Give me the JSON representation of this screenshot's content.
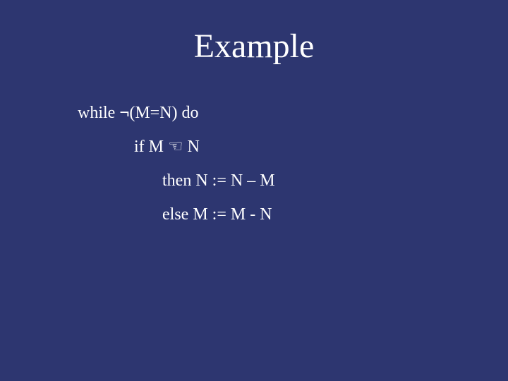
{
  "slide": {
    "background_color": "#2d3670",
    "text_color": "#ffffff",
    "title": {
      "text": "Example",
      "fontsize": 48,
      "font_family": "Times New Roman"
    },
    "body": {
      "fontsize": 24,
      "font_family": "Times New Roman",
      "lines": [
        {
          "indent": 0,
          "prefix": "while ",
          "sym": "¬",
          "suffix": "(M=N) do"
        },
        {
          "indent": 1,
          "prefix": "if M ",
          "sym": "☜",
          "suffix": " N"
        },
        {
          "indent": 2,
          "prefix": "then N := N ",
          "sym": "–",
          "suffix": " M"
        },
        {
          "indent": 2,
          "prefix": "else  M := M - N",
          "sym": "",
          "suffix": ""
        }
      ]
    }
  }
}
